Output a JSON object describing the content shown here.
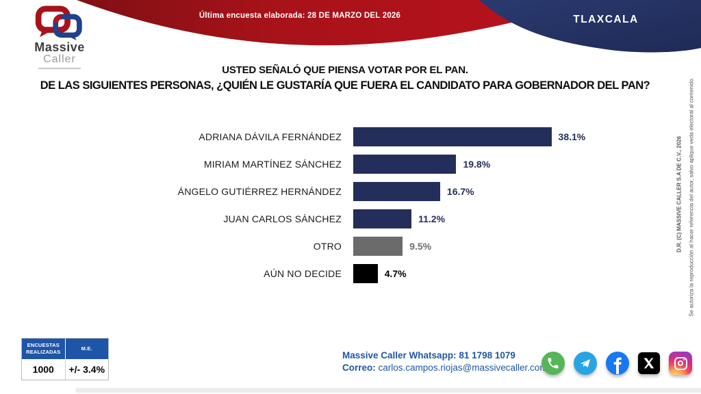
{
  "header": {
    "banner_text": "Última encuesta elaborada: 28 DE MARZO DEL 2026",
    "region": "TLAXCALA",
    "logo": {
      "line1": "Massive",
      "line2": "Caller"
    }
  },
  "title": {
    "line1": "USTED SEÑALÓ QUE PIENSA VOTAR POR EL PAN.",
    "line2": "DE LAS SIGUIENTES PERSONAS, ¿QUIÉN LE GUSTARÍA QUE FUERA EL CANDIDATO PARA GOBERNADOR DEL PAN?"
  },
  "chart_data": {
    "type": "bar",
    "orientation": "horizontal",
    "title": "USTED SEÑALÓ QUE PIENSA VOTAR POR EL PAN. DE LAS SIGUIENTES PERSONAS, ¿QUIÉN LE GUSTARÍA QUE FUERA EL CANDIDATO PARA GOBERNADOR DEL PAN?",
    "categories": [
      "ADRIANA DÁVILA FERNÁNDEZ",
      "MIRIAM MARTÍNEZ SÁNCHEZ",
      "ÁNGELO GUTIÉRREZ HERNÁNDEZ",
      "JUAN CARLOS SÁNCHEZ",
      "OTRO",
      "AÚN NO DECIDE"
    ],
    "values": [
      38.1,
      19.8,
      16.7,
      11.2,
      9.5,
      4.7
    ],
    "value_labels": [
      "38.1%",
      "19.8%",
      "16.7%",
      "11.2%",
      "9.5%",
      "4.7%"
    ],
    "bar_colors": [
      "#242e5b",
      "#242e5b",
      "#242e5b",
      "#242e5b",
      "#6b6b6b",
      "#000000"
    ],
    "value_label_colors": [
      "#242e5b",
      "#242e5b",
      "#242e5b",
      "#242e5b",
      "#6d6d6d",
      "#000000"
    ],
    "xlim": [
      0,
      40
    ],
    "grid": false,
    "legend": false
  },
  "stats_table": {
    "header1": "ENCUESTAS REALIZADAS",
    "header2": "M.E.",
    "value1": "1000",
    "value2": "+/- 3.4%"
  },
  "contact": {
    "whatsapp_label": "Massive Caller Whatsapp:",
    "whatsapp_value": "81 1798 1079",
    "email_label": "Correo:",
    "email_value": "carlos.campos.riojas@massivecaller.com"
  },
  "social_icons": [
    "whatsapp-icon",
    "telegram-icon",
    "facebook-icon",
    "x-icon",
    "instagram-icon"
  ],
  "copyright": {
    "line1": "D.R. (C) MASSIVE CALLER S.A DE C.V., 2026",
    "line2": "Se autoriza la reproducción al hacer referencia del autor, salvo aplique veda electoral al contenido."
  },
  "colors": {
    "banner_red_dark": "#7e1014",
    "banner_red": "#b5121d",
    "corner_navy": "#25325f",
    "bar_navy": "#242e5b",
    "bar_gray": "#6b6b6b",
    "bar_black": "#000000",
    "table_header_blue": "#1e55a8",
    "contact_blue": "#1d57a5"
  }
}
